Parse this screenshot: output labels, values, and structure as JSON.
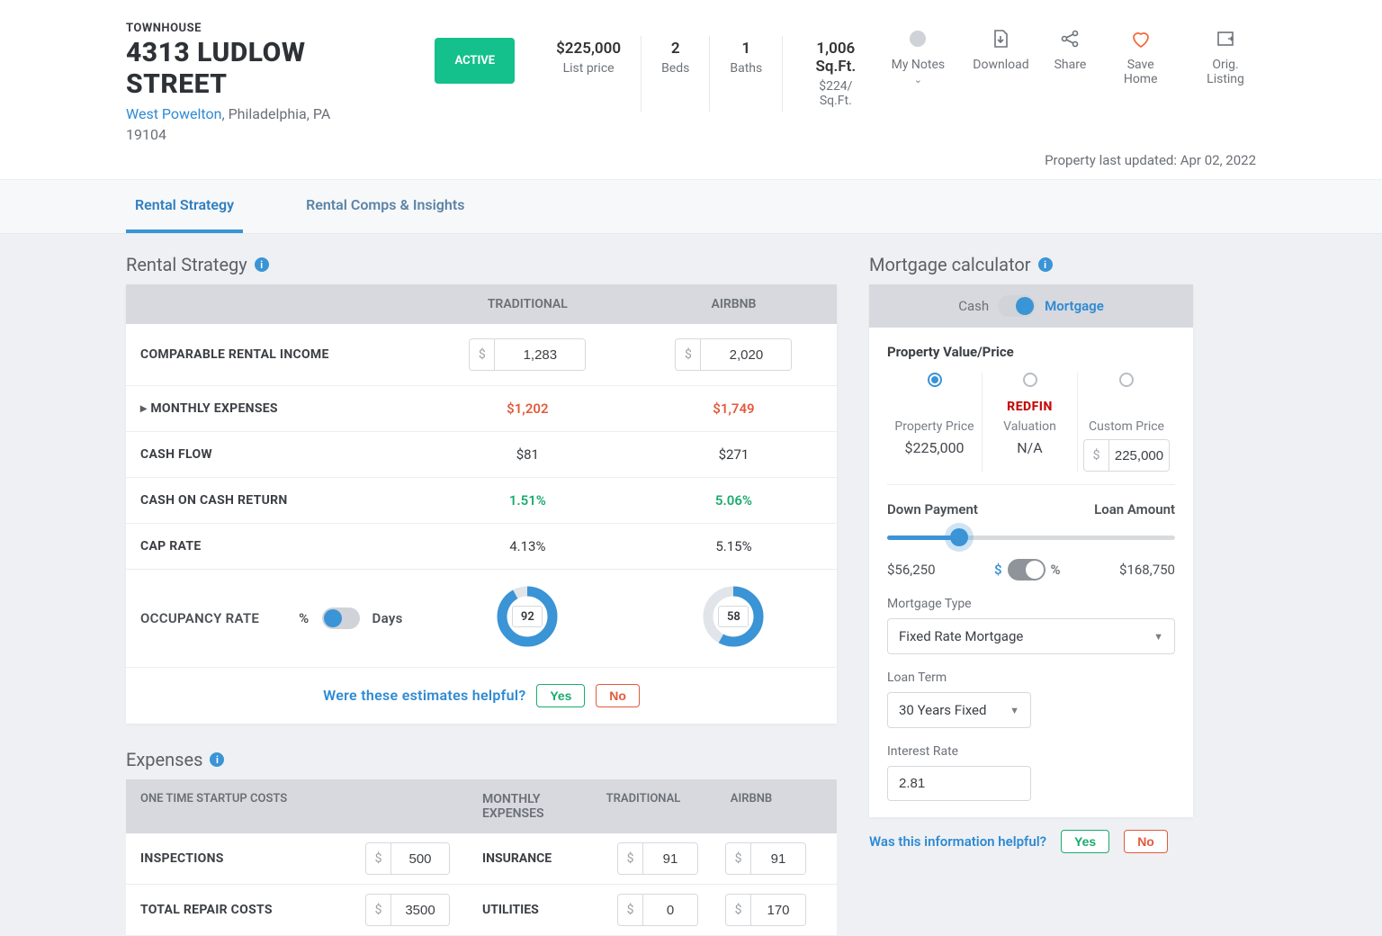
{
  "property": {
    "type_label": "TOWNHOUSE",
    "address": "4313 LUDLOW STREET",
    "neighborhood": "West Powelton",
    "city_state": "Philadelphia, PA",
    "zip": "19104",
    "status": "ACTIVE",
    "updated_label": "Property last updated: Apr 02, 2022"
  },
  "stats": {
    "list_price": {
      "value": "$225,000",
      "label": "List price"
    },
    "beds": {
      "value": "2",
      "label": "Beds"
    },
    "baths": {
      "value": "1",
      "label": "Baths"
    },
    "sqft": {
      "value": "1,006 Sq.Ft.",
      "label": "$224/ Sq.Ft."
    }
  },
  "actions": {
    "notes": "My Notes",
    "download": "Download",
    "share": "Share",
    "save": "Save Home",
    "orig": "Orig. Listing"
  },
  "tabs": {
    "strategy": "Rental Strategy",
    "comps": "Rental Comps & Insights"
  },
  "strategy": {
    "title": "Rental Strategy",
    "col_trad": "TRADITIONAL",
    "col_airbnb": "AIRBNB",
    "rows": {
      "income_label": "COMPARABLE RENTAL INCOME",
      "income_trad": "1,283",
      "income_airbnb": "2,020",
      "expenses_label": "MONTHLY EXPENSES",
      "expenses_trad": "$1,202",
      "expenses_airbnb": "$1,749",
      "cashflow_label": "CASH FLOW",
      "cashflow_trad": "$81",
      "cashflow_airbnb": "$271",
      "coc_label": "CASH ON CASH RETURN",
      "coc_trad": "1.51%",
      "coc_airbnb": "5.06%",
      "cap_label": "CAP RATE",
      "cap_trad": "4.13%",
      "cap_airbnb": "5.15%",
      "occ_label": "OCCUPANCY RATE",
      "occ_pct": "%",
      "occ_days": "Days",
      "occ_trad": "92",
      "occ_airbnb": "58"
    },
    "donut": {
      "trad_pct": 92,
      "airbnb_pct": 58,
      "color_on": "#3a94d6",
      "color_off": "#e1e4e8"
    },
    "feedback": {
      "text": "Were these estimates helpful?",
      "yes": "Yes",
      "no": "No"
    }
  },
  "expenses": {
    "title": "Expenses",
    "head": {
      "startup": "ONE TIME STARTUP COSTS",
      "monthly": "MONTHLY EXPENSES",
      "trad": "TRADITIONAL",
      "airbnb": "AIRBNB"
    },
    "rows": {
      "inspections": {
        "label": "INSPECTIONS",
        "value": "500"
      },
      "repair": {
        "label": "TOTAL REPAIR COSTS",
        "value": "3500"
      },
      "insurance": {
        "label": "INSURANCE",
        "trad": "91",
        "airbnb": "91"
      },
      "utilities": {
        "label": "UTILITIES",
        "trad": "0",
        "airbnb": "170"
      }
    }
  },
  "calc": {
    "title": "Mortgage calculator",
    "toggle": {
      "cash": "Cash",
      "mortgage": "Mortgage"
    },
    "pv_title": "Property Value/Price",
    "opts": {
      "price": {
        "label": "Property Price",
        "value": "$225,000"
      },
      "redfin": {
        "brand": "REDFIN",
        "label": "Valuation",
        "value": "N/A"
      },
      "custom": {
        "label": "Custom Price",
        "value": "225,000"
      }
    },
    "down": {
      "label": "Down Payment",
      "loan_label": "Loan Amount",
      "dp_value": "$56,250",
      "loan_value": "$168,750",
      "pct": 25,
      "pct_symbol": "$",
      "pct_symbol2": "%"
    },
    "mtype": {
      "label": "Mortgage Type",
      "value": "Fixed Rate Mortgage"
    },
    "term": {
      "label": "Loan Term",
      "value": "30 Years Fixed"
    },
    "rate": {
      "label": "Interest Rate",
      "value": "2.81"
    },
    "feedback": {
      "text": "Was this information helpful?",
      "yes": "Yes",
      "no": "No"
    }
  }
}
